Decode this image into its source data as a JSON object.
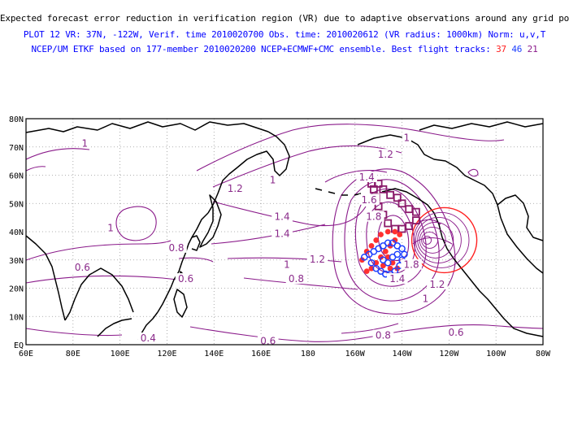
{
  "header": {
    "line1": "Expected forecast error reduction in verification region (VR) due to adaptive observations around any grid point.",
    "line2": "PLOT 12 VR: 37N, -122W, Verif. time 2010020700 Obs. time: 2010020612 (VR radius: 1000km) Norm: u,v,T",
    "line3_prefix": "NCEP/UM ETKF based on 177-member 2010020200 NCEP+ECMWF+CMC ensemble. Best flight tracks: ",
    "track_ids": [
      "37",
      "46",
      "21"
    ]
  },
  "map": {
    "lon_range": [
      60,
      280
    ],
    "lat_range": [
      0,
      80
    ],
    "x_ticks": [
      "60E",
      "80E",
      "100E",
      "120E",
      "140E",
      "160E",
      "180",
      "160W",
      "140W",
      "120W",
      "100W",
      "80W"
    ],
    "y_ticks": [
      "EQ",
      "10N",
      "20N",
      "30N",
      "40N",
      "50N",
      "60N",
      "70N",
      "80N"
    ],
    "grid": true,
    "colors": {
      "contour": "#8a1a8a",
      "coast": "#000000",
      "grid": "#999999",
      "track_37": "#ff3030",
      "track_46": "#1e40ff",
      "track_21": "#8a1a6a",
      "vr_circle": "#ff2020"
    },
    "verification_center": {
      "lat": 37,
      "lon": -122
    },
    "contour_labels": [
      {
        "text": "1",
        "lat": 71,
        "lon": 85
      },
      {
        "text": "1",
        "lat": 41,
        "lon": 96
      },
      {
        "text": "0.6",
        "lat": 27,
        "lon": 84
      },
      {
        "text": "0.4",
        "lat": 2,
        "lon": 112
      },
      {
        "text": "0.8",
        "lat": 34,
        "lon": 124
      },
      {
        "text": "0.6",
        "lat": 23,
        "lon": 128
      },
      {
        "text": "1.2",
        "lat": 55,
        "lon": 149
      },
      {
        "text": "1",
        "lat": 58,
        "lon": 165
      },
      {
        "text": "1.4",
        "lat": 45,
        "lon": 169
      },
      {
        "text": "1.4",
        "lat": 39,
        "lon": 169
      },
      {
        "text": "1",
        "lat": 28,
        "lon": 171
      },
      {
        "text": "0.8",
        "lat": 23,
        "lon": 175
      },
      {
        "text": "1.2",
        "lat": 30,
        "lon": 184
      },
      {
        "text": "0.6",
        "lat": 1,
        "lon": 163
      },
      {
        "text": "0.8",
        "lat": 3,
        "lon": 212
      },
      {
        "text": "0.6",
        "lat": 4,
        "lon": 243
      },
      {
        "text": "1",
        "lat": 73,
        "lon": 222
      },
      {
        "text": "1.2",
        "lat": 67,
        "lon": 213
      },
      {
        "text": "1.4",
        "lat": 59,
        "lon": 205
      },
      {
        "text": "1.6",
        "lat": 51,
        "lon": 206
      },
      {
        "text": "1.8",
        "lat": 45,
        "lon": 208
      },
      {
        "text": "1.8",
        "lat": 28,
        "lon": 224
      },
      {
        "text": "1.4",
        "lat": 23,
        "lon": 218
      },
      {
        "text": "1.2",
        "lat": 21,
        "lon": 235
      },
      {
        "text": "1",
        "lat": 16,
        "lon": 230
      }
    ],
    "tracks": {
      "track_21": [
        {
          "lon": 207,
          "lat": 57
        },
        {
          "lon": 210,
          "lat": 57
        },
        {
          "lon": 212,
          "lat": 55
        },
        {
          "lon": 215,
          "lat": 53
        },
        {
          "lon": 218,
          "lat": 52
        },
        {
          "lon": 220,
          "lat": 50
        },
        {
          "lon": 223,
          "lat": 48
        },
        {
          "lon": 226,
          "lat": 47
        },
        {
          "lon": 226,
          "lat": 44
        },
        {
          "lon": 223,
          "lat": 42
        },
        {
          "lon": 220,
          "lat": 41
        },
        {
          "lon": 217,
          "lat": 41
        },
        {
          "lon": 214,
          "lat": 43
        },
        {
          "lon": 212,
          "lat": 46
        },
        {
          "lon": 210,
          "lat": 49
        },
        {
          "lon": 209,
          "lat": 52
        },
        {
          "lon": 208,
          "lat": 55
        }
      ],
      "track_37": [
        {
          "lon": 203,
          "lat": 30
        },
        {
          "lon": 205,
          "lat": 33
        },
        {
          "lon": 207,
          "lat": 35
        },
        {
          "lon": 209,
          "lat": 37
        },
        {
          "lon": 211,
          "lat": 39
        },
        {
          "lon": 214,
          "lat": 40
        },
        {
          "lon": 217,
          "lat": 40
        },
        {
          "lon": 219,
          "lat": 39
        },
        {
          "lon": 217,
          "lat": 37
        },
        {
          "lon": 215,
          "lat": 35
        },
        {
          "lon": 213,
          "lat": 33
        },
        {
          "lon": 211,
          "lat": 31
        },
        {
          "lon": 209,
          "lat": 29
        },
        {
          "lon": 207,
          "lat": 27
        },
        {
          "lon": 205,
          "lat": 26
        },
        {
          "lon": 214,
          "lat": 31
        },
        {
          "lon": 216,
          "lat": 29
        },
        {
          "lon": 218,
          "lat": 27
        },
        {
          "lon": 215,
          "lat": 27
        },
        {
          "lon": 212,
          "lat": 28
        }
      ],
      "track_46": [
        {
          "lon": 204,
          "lat": 31
        },
        {
          "lon": 206,
          "lat": 32
        },
        {
          "lon": 208,
          "lat": 33
        },
        {
          "lon": 210,
          "lat": 34
        },
        {
          "lon": 212,
          "lat": 35
        },
        {
          "lon": 214,
          "lat": 36
        },
        {
          "lon": 216,
          "lat": 36
        },
        {
          "lon": 218,
          "lat": 35
        },
        {
          "lon": 220,
          "lat": 34
        },
        {
          "lon": 221,
          "lat": 32
        },
        {
          "lon": 220,
          "lat": 30
        },
        {
          "lon": 219,
          "lat": 28
        },
        {
          "lon": 217,
          "lat": 26
        },
        {
          "lon": 215,
          "lat": 25
        },
        {
          "lon": 213,
          "lat": 25
        },
        {
          "lon": 211,
          "lat": 26
        },
        {
          "lon": 209,
          "lat": 27
        },
        {
          "lon": 207,
          "lat": 29
        },
        {
          "lon": 216,
          "lat": 31
        },
        {
          "lon": 218,
          "lat": 32
        },
        {
          "lon": 214,
          "lat": 29
        },
        {
          "lon": 212,
          "lat": 30
        }
      ]
    }
  }
}
